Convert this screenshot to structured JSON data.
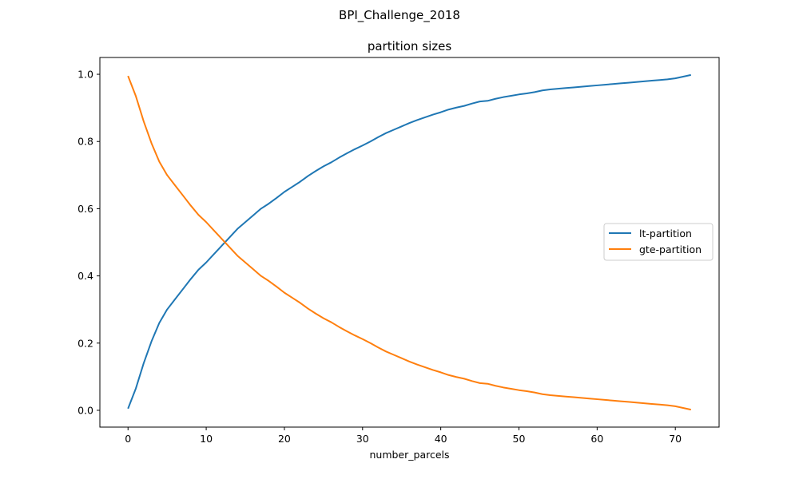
{
  "figure": {
    "suptitle": "BPI_Challenge_2018"
  },
  "chart_data": {
    "type": "line",
    "title": "partition sizes",
    "xlabel": "number_parcels",
    "ylabel": "",
    "xlim": [
      -3.6,
      75.6
    ],
    "ylim": [
      -0.05,
      1.05
    ],
    "xticks": [
      0,
      10,
      20,
      30,
      40,
      50,
      60,
      70
    ],
    "yticks": [
      0.0,
      0.2,
      0.4,
      0.6,
      0.8,
      1.0
    ],
    "xtick_labels": [
      "0",
      "10",
      "20",
      "30",
      "40",
      "50",
      "60",
      "70"
    ],
    "ytick_labels": [
      "0.0",
      "0.2",
      "0.4",
      "0.6",
      "0.8",
      "1.0"
    ],
    "grid": false,
    "legend_position": "center-right",
    "x": [
      0,
      1,
      2,
      3,
      4,
      5,
      6,
      7,
      8,
      9,
      10,
      11,
      12,
      13,
      14,
      15,
      16,
      17,
      18,
      19,
      20,
      21,
      22,
      23,
      24,
      25,
      26,
      27,
      28,
      29,
      30,
      31,
      32,
      33,
      34,
      35,
      36,
      37,
      38,
      39,
      40,
      41,
      42,
      43,
      44,
      45,
      46,
      47,
      48,
      49,
      50,
      51,
      52,
      53,
      54,
      55,
      56,
      57,
      58,
      59,
      60,
      61,
      62,
      63,
      64,
      65,
      66,
      67,
      68,
      69,
      70,
      71,
      72
    ],
    "series": [
      {
        "name": "lt-partition",
        "color": "#1f77b4",
        "values": [
          0.005,
          0.065,
          0.14,
          0.205,
          0.26,
          0.3,
          0.33,
          0.36,
          0.39,
          0.418,
          0.44,
          0.465,
          0.49,
          0.515,
          0.54,
          0.56,
          0.58,
          0.6,
          0.615,
          0.632,
          0.65,
          0.665,
          0.68,
          0.697,
          0.712,
          0.726,
          0.738,
          0.752,
          0.765,
          0.777,
          0.788,
          0.8,
          0.813,
          0.825,
          0.835,
          0.845,
          0.855,
          0.864,
          0.872,
          0.88,
          0.887,
          0.895,
          0.901,
          0.906,
          0.913,
          0.919,
          0.921,
          0.927,
          0.932,
          0.936,
          0.94,
          0.943,
          0.947,
          0.952,
          0.955,
          0.957,
          0.959,
          0.961,
          0.963,
          0.965,
          0.967,
          0.969,
          0.971,
          0.973,
          0.975,
          0.977,
          0.979,
          0.981,
          0.983,
          0.985,
          0.988,
          0.993,
          0.998
        ]
      },
      {
        "name": "gte-partition",
        "color": "#ff7f0e",
        "values": [
          0.995,
          0.935,
          0.86,
          0.795,
          0.74,
          0.7,
          0.67,
          0.64,
          0.61,
          0.582,
          0.56,
          0.535,
          0.51,
          0.485,
          0.46,
          0.44,
          0.42,
          0.4,
          0.385,
          0.368,
          0.35,
          0.335,
          0.32,
          0.303,
          0.288,
          0.274,
          0.262,
          0.248,
          0.235,
          0.223,
          0.212,
          0.2,
          0.187,
          0.175,
          0.165,
          0.155,
          0.145,
          0.136,
          0.128,
          0.12,
          0.113,
          0.105,
          0.099,
          0.094,
          0.087,
          0.081,
          0.079,
          0.073,
          0.068,
          0.064,
          0.06,
          0.057,
          0.053,
          0.048,
          0.045,
          0.043,
          0.041,
          0.039,
          0.037,
          0.035,
          0.033,
          0.031,
          0.029,
          0.027,
          0.025,
          0.023,
          0.021,
          0.019,
          0.017,
          0.015,
          0.012,
          0.007,
          0.002
        ]
      }
    ]
  }
}
